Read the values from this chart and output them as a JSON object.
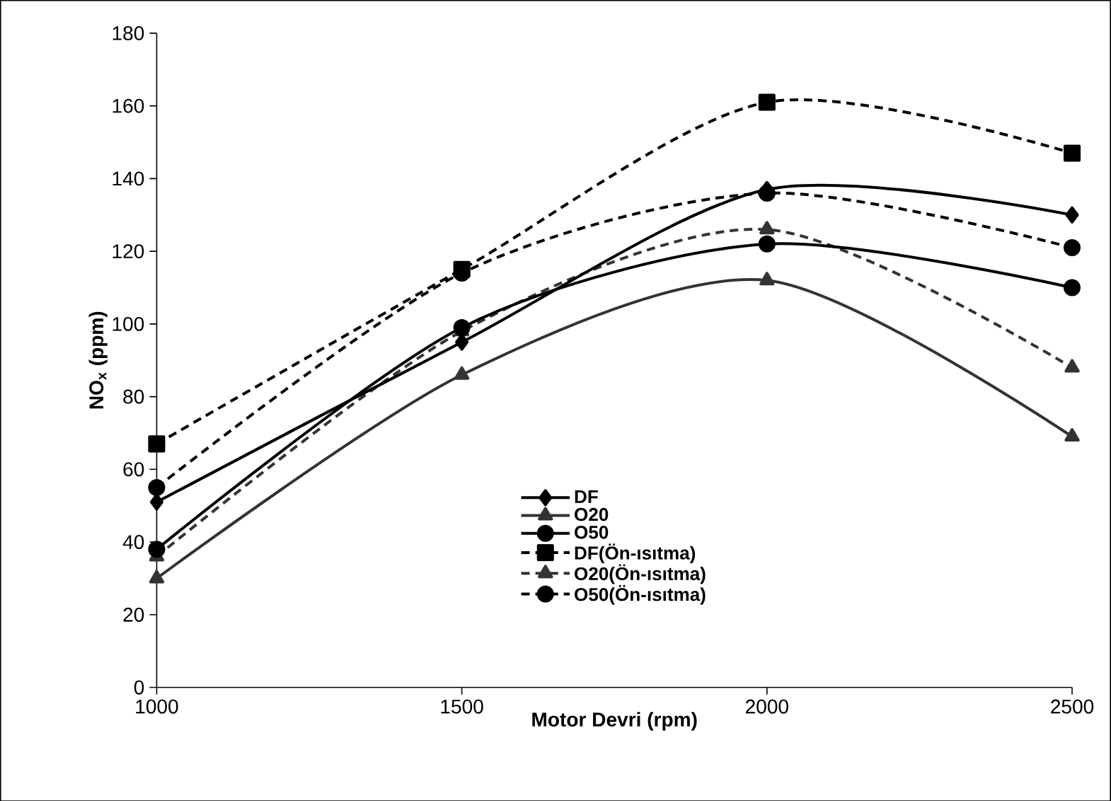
{
  "chart_data": {
    "type": "line",
    "xlabel": "Motor Devri (rpm)",
    "ylabel": "NO$_{x}$ (ppm)",
    "x": [
      1000,
      1500,
      2000,
      2500
    ],
    "xlim": [
      1000,
      2500
    ],
    "xticks": [
      1000,
      1500,
      2000,
      2500
    ],
    "ylim": [
      0,
      180
    ],
    "yticks": [
      0,
      20,
      40,
      60,
      80,
      100,
      120,
      140,
      160,
      180
    ],
    "grid": false,
    "legend": "bottom",
    "series": [
      {
        "name": "DF",
        "color": "#000000",
        "marker": "diamond",
        "line_style": "solid",
        "values": [
          51,
          95,
          137,
          130
        ]
      },
      {
        "name": "O20",
        "color": "#333333",
        "marker": "triangle",
        "line_style": "solid",
        "values": [
          30,
          86,
          112,
          69
        ]
      },
      {
        "name": "O50",
        "color": "#000000",
        "marker": "circle",
        "line_style": "solid",
        "values": [
          38,
          99,
          122,
          110
        ]
      },
      {
        "name": "DF(Ön-ısıtma)",
        "color": "#000000",
        "marker": "square",
        "line_style": "dashed",
        "values": [
          67,
          115,
          161,
          147
        ]
      },
      {
        "name": "O20(Ön-ısıtma)",
        "color": "#333333",
        "marker": "triangle",
        "line_style": "dashed",
        "values": [
          36,
          98,
          126,
          88
        ]
      },
      {
        "name": "O50(Ön-ısıtma)",
        "color": "#000000",
        "marker": "circle",
        "line_style": "dashed",
        "values": [
          55,
          114,
          136,
          121
        ]
      }
    ]
  }
}
